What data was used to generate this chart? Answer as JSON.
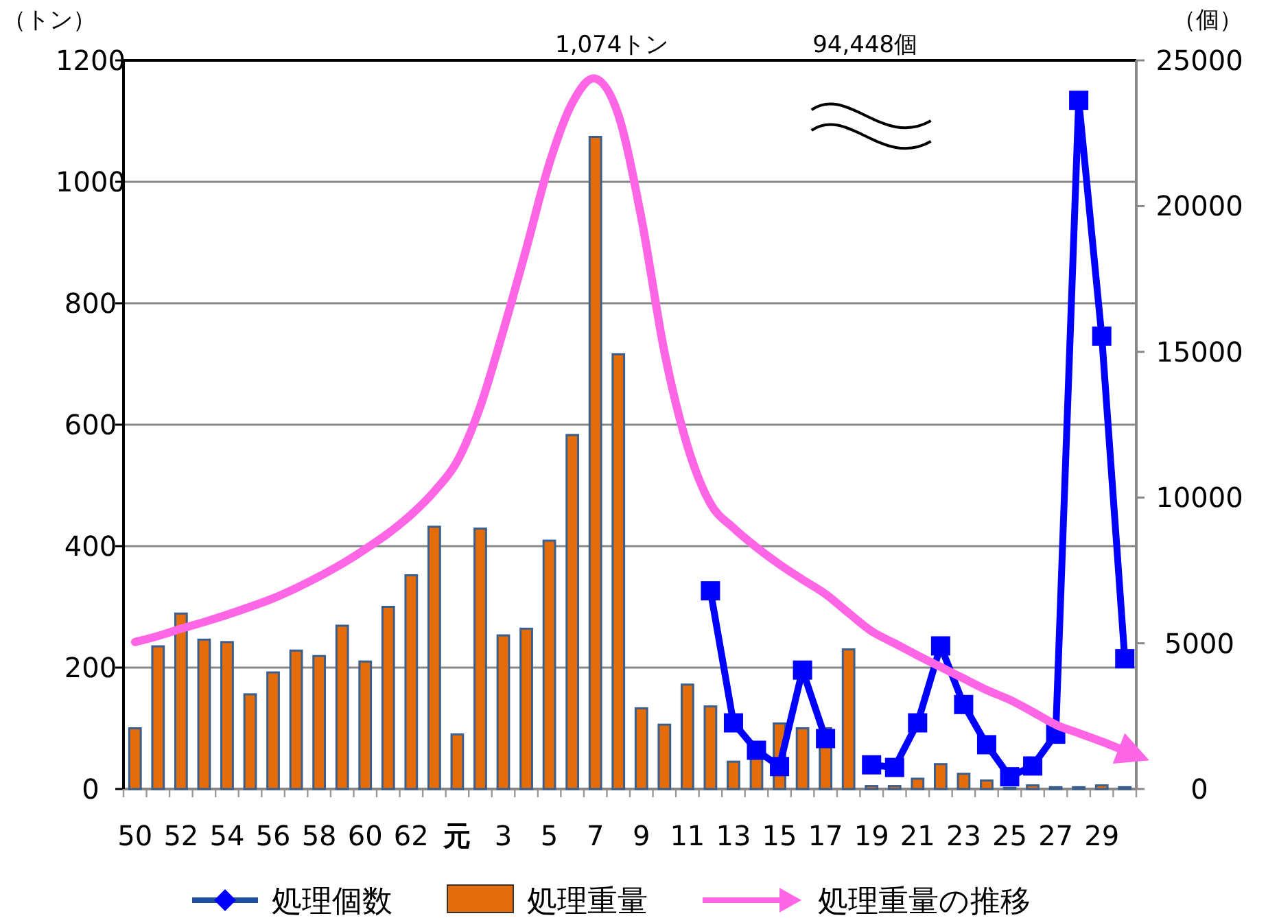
{
  "chart_data": {
    "type": "bar",
    "ylabel": "（トン）",
    "y2label": "（個）",
    "categories": [
      "50",
      null,
      "52",
      null,
      "54",
      null,
      "56",
      null,
      "58",
      null,
      "60",
      null,
      "62",
      null,
      "元",
      null,
      "3",
      null,
      "5",
      null,
      "7",
      null,
      "9",
      null,
      "11",
      null,
      "13",
      null,
      "15",
      null,
      "17",
      null,
      "19",
      null,
      "21",
      null,
      "23",
      null,
      "25",
      null,
      "27",
      null,
      "29",
      null
    ],
    "ylim": [
      0,
      1200
    ],
    "yticks": [
      0,
      200,
      400,
      600,
      800,
      1000,
      1200
    ],
    "y2lim": [
      0,
      25000
    ],
    "y2ticks": [
      0,
      5000,
      10000,
      15000,
      20000,
      25000
    ],
    "grid": "y",
    "legend": "bottom",
    "annotations": [
      "1,074トン",
      "94,448個"
    ],
    "series": [
      {
        "name": "処理個数",
        "type": "line",
        "axis": "y2",
        "color": "#0000ff",
        "marker": "square",
        "values": [
          null,
          null,
          null,
          null,
          null,
          null,
          null,
          null,
          null,
          null,
          null,
          null,
          null,
          null,
          null,
          null,
          null,
          null,
          null,
          null,
          null,
          null,
          null,
          null,
          null,
          6800,
          2270,
          1330,
          770,
          4080,
          1730,
          null,
          830,
          740,
          2270,
          4910,
          2900,
          1520,
          420,
          790,
          1880,
          23630,
          15540,
          4470
        ]
      },
      {
        "name": "処理重量",
        "color": "#e46c0a",
        "values": [
          100,
          235,
          289,
          246,
          242,
          156,
          192,
          228,
          219,
          269,
          210,
          300,
          352,
          432,
          90,
          429,
          253,
          264,
          409,
          583,
          1074,
          716,
          133,
          106,
          172,
          136,
          45,
          55,
          108,
          100,
          100,
          230,
          5,
          5,
          17,
          41,
          25,
          14,
          2,
          6,
          3,
          3,
          6,
          3
        ]
      },
      {
        "name": "処理重量の推移",
        "type": "line",
        "color": "#ff66e6",
        "marker": "none",
        "values": [
          242,
          252,
          264,
          275,
          287,
          300,
          314,
          331,
          350,
          371,
          395,
          421,
          452,
          490,
          540,
          630,
          755,
          890,
          1030,
          1130,
          1170,
          1110,
          940,
          720,
          565,
          470,
          430,
          398,
          370,
          345,
          321,
          290,
          260,
          240,
          220,
          201,
          182,
          163,
          147,
          127,
          106,
          92,
          78,
          63
        ]
      }
    ]
  }
}
